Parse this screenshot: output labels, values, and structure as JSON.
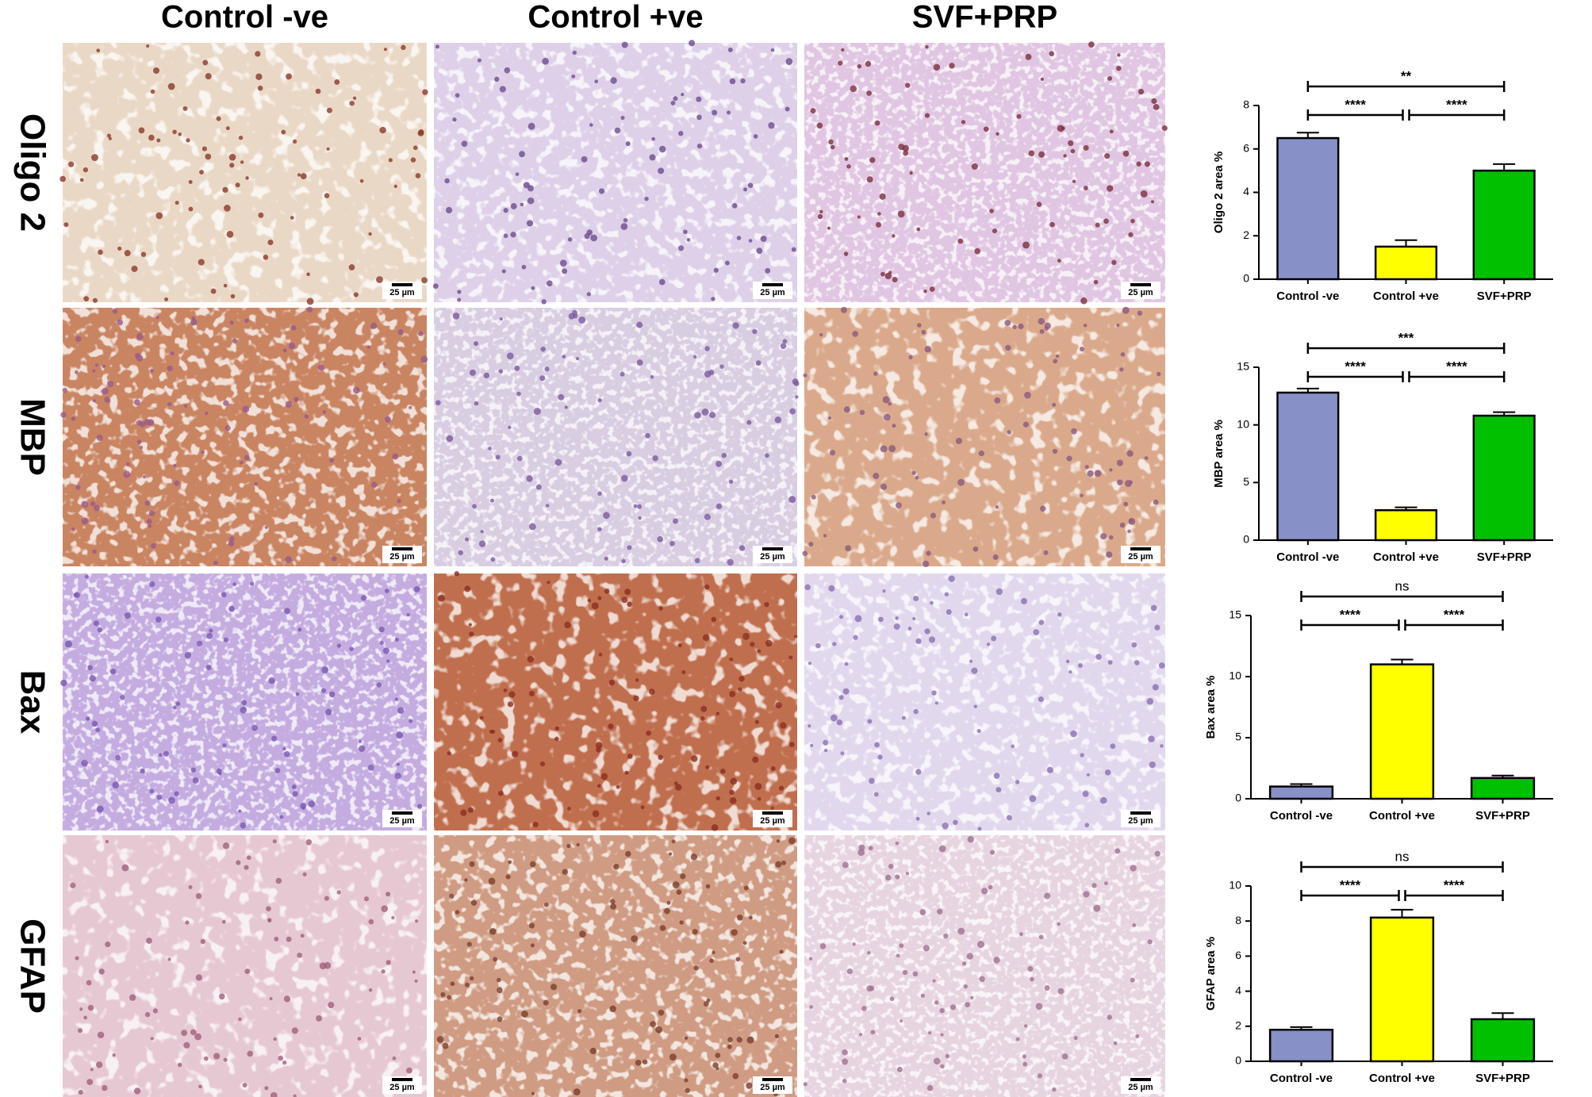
{
  "column_headers": [
    "Control -ve",
    "Control +ve",
    "SVF+PRP"
  ],
  "row_labels": [
    "Oligo 2",
    "MBP",
    "Bax",
    "GFAP"
  ],
  "scale_bar": "25 µm",
  "chart_data": [
    {
      "type": "bar",
      "y_label": "Oligo 2 area %",
      "categories": [
        "Control -ve",
        "Control +ve",
        "SVF+PRP"
      ],
      "values": [
        6.5,
        1.5,
        5.0
      ],
      "errors": [
        0.25,
        0.3,
        0.3
      ],
      "colors": [
        "#8890c8",
        "#ffff00",
        "#00c000"
      ],
      "ylim": [
        0,
        8
      ],
      "yticks": [
        0,
        2,
        4,
        6,
        8
      ],
      "significance": [
        "**",
        "****",
        "****"
      ]
    },
    {
      "type": "bar",
      "y_label": "MBP area %",
      "categories": [
        "Control -ve",
        "Control +ve",
        "SVF+PRP"
      ],
      "values": [
        12.8,
        2.6,
        10.8
      ],
      "errors": [
        0.35,
        0.25,
        0.3
      ],
      "colors": [
        "#8890c8",
        "#ffff00",
        "#00c000"
      ],
      "ylim": [
        0,
        15
      ],
      "yticks": [
        0,
        5,
        10,
        15
      ],
      "significance": [
        "***",
        "****",
        "****"
      ]
    },
    {
      "type": "bar",
      "y_label": "Bax area %",
      "categories": [
        "Control -ve",
        "Control +ve",
        "SVF+PRP"
      ],
      "values": [
        1.0,
        11.0,
        1.7
      ],
      "errors": [
        0.2,
        0.4,
        0.2
      ],
      "colors": [
        "#8890c8",
        "#ffff00",
        "#00c000"
      ],
      "ylim": [
        0,
        15
      ],
      "yticks": [
        0,
        5,
        10,
        15
      ],
      "significance": [
        "ns",
        "****",
        "****"
      ]
    },
    {
      "type": "bar",
      "y_label": "GFAP area %",
      "categories": [
        "Control -ve",
        "Control +ve",
        "SVF+PRP"
      ],
      "values": [
        1.8,
        8.2,
        2.4
      ],
      "errors": [
        0.15,
        0.45,
        0.35
      ],
      "colors": [
        "#8890c8",
        "#ffff00",
        "#00c000"
      ],
      "ylim": [
        0,
        10
      ],
      "yticks": [
        0,
        2,
        4,
        6,
        8,
        10
      ],
      "significance": [
        "ns",
        "****",
        "****"
      ]
    }
  ]
}
